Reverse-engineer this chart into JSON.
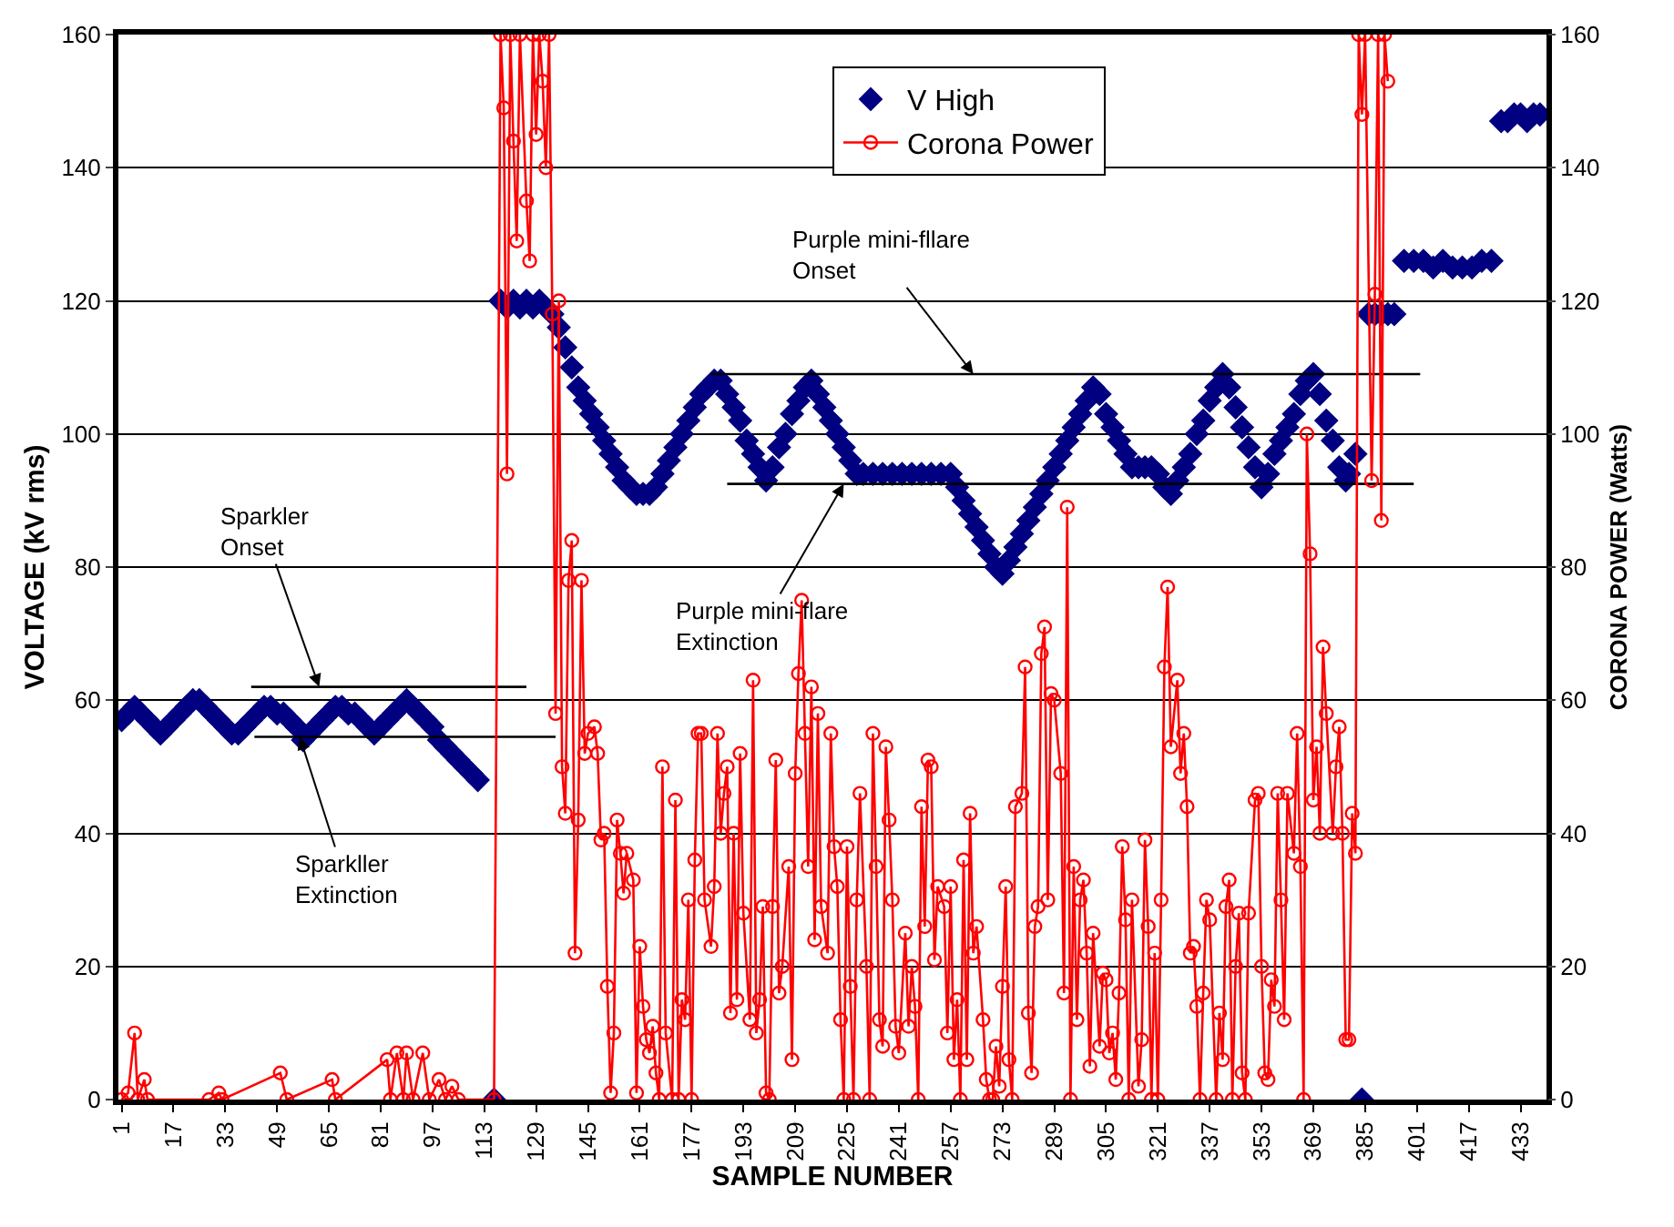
{
  "chart_data": {
    "type": "scatter",
    "xlabel": "SAMPLE NUMBER",
    "ylabel": "VOLTAGE (kV rms)",
    "y2label": "CORONA POWER (Watts)",
    "xlim": [
      0,
      441
    ],
    "xticks": [
      1,
      17,
      33,
      49,
      65,
      81,
      97,
      113,
      129,
      145,
      161,
      177,
      193,
      209,
      225,
      241,
      257,
      273,
      289,
      305,
      321,
      337,
      353,
      369,
      385,
      401,
      417,
      433
    ],
    "ylim": [
      0,
      160
    ],
    "yticks": [
      0,
      20,
      40,
      60,
      80,
      100,
      120,
      140,
      160
    ],
    "y2lim": [
      0,
      160
    ],
    "y2ticks": [
      0,
      20,
      40,
      60,
      80,
      100,
      120,
      140,
      160
    ],
    "grid": "y",
    "legend": "top",
    "series": [
      {
        "name": "V High",
        "marker": "diamond",
        "color": "#000080",
        "x": [
          1,
          3,
          5,
          7,
          9,
          11,
          13,
          15,
          17,
          19,
          21,
          23,
          25,
          27,
          29,
          31,
          33,
          35,
          37,
          39,
          41,
          43,
          45,
          47,
          49,
          51,
          53,
          55,
          57,
          59,
          61,
          63,
          65,
          67,
          69,
          71,
          73,
          75,
          77,
          79,
          81,
          83,
          85,
          87,
          89,
          91,
          93,
          95,
          97,
          99,
          101,
          103,
          105,
          107,
          109,
          111,
          116,
          118,
          120,
          122,
          124,
          126,
          128,
          130,
          132,
          134,
          136,
          138,
          140,
          142,
          144,
          146,
          148,
          150,
          152,
          154,
          156,
          158,
          160,
          162,
          164,
          166,
          168,
          170,
          172,
          174,
          176,
          178,
          180,
          182,
          184,
          186,
          188,
          190,
          192,
          194,
          196,
          198,
          200,
          202,
          204,
          206,
          208,
          210,
          212,
          214,
          216,
          218,
          220,
          222,
          224,
          226,
          228,
          230,
          233,
          236,
          239,
          242,
          245,
          248,
          251,
          254,
          257,
          259,
          261,
          263,
          265,
          267,
          269,
          271,
          273,
          275,
          277,
          279,
          281,
          283,
          285,
          287,
          289,
          291,
          293,
          295,
          297,
          299,
          301,
          303,
          305,
          307,
          309,
          311,
          313,
          315,
          317,
          319,
          321,
          323,
          325,
          327,
          329,
          331,
          333,
          335,
          337,
          339,
          341,
          343,
          345,
          347,
          349,
          351,
          353,
          355,
          357,
          359,
          361,
          363,
          365,
          367,
          369,
          371,
          373,
          375,
          377,
          379,
          380,
          382,
          384,
          386,
          388,
          390,
          392,
          394,
          397,
          400,
          403,
          406,
          409,
          412,
          415,
          418,
          421,
          424,
          427,
          429,
          431,
          433,
          435,
          437,
          439
        ],
        "values": [
          57,
          58,
          59,
          58,
          57,
          56,
          55,
          56,
          57,
          58,
          59,
          60,
          60,
          59,
          58,
          57,
          56,
          55,
          55,
          56,
          57,
          58,
          59,
          59,
          58,
          58,
          57,
          56,
          54,
          55,
          56,
          57,
          58,
          59,
          59,
          58,
          58,
          57,
          56,
          55,
          56,
          57,
          58,
          59,
          60,
          59,
          58,
          57,
          56,
          54,
          53,
          52,
          51,
          50,
          49,
          48,
          0,
          120,
          119,
          120,
          119,
          120,
          119,
          120,
          119,
          118,
          116,
          113,
          110,
          107,
          105,
          103,
          101,
          99,
          97,
          95,
          93,
          92,
          91,
          91,
          91,
          92,
          94,
          96,
          98,
          100,
          102,
          104,
          106,
          107,
          108,
          108,
          106,
          104,
          102,
          99,
          97,
          95,
          93,
          95,
          98,
          100,
          103,
          105,
          107,
          108,
          106,
          104,
          102,
          100,
          98,
          96,
          94,
          94,
          94,
          94,
          94,
          94,
          94,
          94,
          94,
          94,
          94,
          92,
          90,
          88,
          86,
          84,
          82,
          80,
          79,
          81,
          83,
          85,
          87,
          89,
          91,
          93,
          95,
          97,
          99,
          101,
          103,
          105,
          107,
          106,
          103,
          101,
          99,
          97,
          95,
          95,
          95,
          95,
          94,
          92,
          91,
          93,
          95,
          97,
          100,
          102,
          105,
          107,
          109,
          107,
          104,
          101,
          98,
          95,
          92,
          94,
          97,
          99,
          101,
          103,
          106,
          108,
          109,
          106,
          102,
          99,
          95,
          93,
          94,
          97,
          0,
          118,
          118,
          118,
          118,
          118,
          126,
          126,
          126,
          125,
          126,
          125,
          125,
          125,
          126,
          126,
          147,
          147,
          148,
          148,
          147,
          148,
          148
        ]
      },
      {
        "name": "Corona Power",
        "type": "line",
        "axis": "y2",
        "marker": "circle",
        "line_style": "solid",
        "color": "#ff0000",
        "x": [
          1,
          3,
          5,
          6,
          8,
          9,
          28,
          31,
          32,
          50,
          52,
          66,
          67,
          83,
          84,
          86,
          88,
          89,
          91,
          94,
          96,
          99,
          101,
          103,
          105,
          116,
          118,
          119,
          120,
          121,
          122,
          123,
          124,
          126,
          127,
          128,
          129,
          130,
          131,
          132,
          133,
          134,
          135,
          136,
          137,
          138,
          139,
          140,
          141,
          142,
          143,
          144,
          145,
          147,
          148,
          149,
          150,
          151,
          152,
          153,
          154,
          155,
          156,
          157,
          159,
          160,
          161,
          162,
          163,
          164,
          165,
          166,
          167,
          168,
          169,
          171,
          172,
          173,
          174,
          175,
          176,
          177,
          178,
          179,
          180,
          181,
          183,
          184,
          185,
          186,
          187,
          188,
          189,
          190,
          191,
          192,
          193,
          195,
          196,
          197,
          198,
          199,
          200,
          201,
          202,
          203,
          204,
          205,
          207,
          208,
          209,
          210,
          211,
          212,
          213,
          214,
          215,
          216,
          217,
          219,
          220,
          221,
          222,
          223,
          224,
          225,
          226,
          227,
          228,
          229,
          231,
          232,
          233,
          234,
          235,
          236,
          237,
          238,
          239,
          240,
          241,
          243,
          244,
          245,
          246,
          247,
          248,
          249,
          250,
          251,
          252,
          253,
          255,
          256,
          257,
          258,
          259,
          260,
          261,
          262,
          263,
          264,
          265,
          267,
          268,
          269,
          270,
          271,
          272,
          273,
          274,
          275,
          276,
          277,
          279,
          280,
          281,
          282,
          283,
          284,
          285,
          286,
          287,
          288,
          289,
          291,
          292,
          293,
          294,
          295,
          296,
          297,
          298,
          299,
          300,
          301,
          303,
          304,
          305,
          306,
          307,
          308,
          309,
          310,
          311,
          312,
          313,
          315,
          316,
          317,
          318,
          319,
          320,
          321,
          322,
          323,
          324,
          325,
          327,
          328,
          329,
          330,
          331,
          332,
          333,
          334,
          335,
          336,
          337,
          339,
          340,
          341,
          342,
          343,
          344,
          345,
          346,
          347,
          348,
          349,
          351,
          352,
          353,
          354,
          355,
          356,
          357,
          358,
          359,
          360,
          361,
          363,
          364,
          365,
          366,
          367,
          368,
          369,
          370,
          371,
          372,
          373,
          375,
          376,
          377,
          378,
          379,
          380,
          381,
          382,
          383,
          384,
          385,
          387,
          388,
          389,
          390,
          391,
          392
        ],
        "values": [
          0,
          1,
          10,
          0,
          3,
          0,
          0,
          1,
          0,
          4,
          0,
          3,
          0,
          6,
          0,
          7,
          0,
          7,
          0,
          7,
          0,
          3,
          0,
          2,
          0,
          0,
          160,
          149,
          94,
          160,
          144,
          129,
          160,
          135,
          126,
          160,
          145,
          160,
          153,
          140,
          160,
          118,
          58,
          120,
          50,
          43,
          78,
          84,
          22,
          42,
          78,
          52,
          55,
          56,
          52,
          39,
          40,
          17,
          1,
          10,
          42,
          37,
          31,
          37,
          33,
          1,
          23,
          14,
          9,
          7,
          11,
          4,
          0,
          50,
          10,
          0,
          45,
          0,
          15,
          12,
          30,
          0,
          36,
          55,
          55,
          30,
          23,
          32,
          55,
          40,
          46,
          50,
          13,
          40,
          15,
          52,
          28,
          12,
          63,
          10,
          15,
          29,
          1,
          0,
          29,
          51,
          16,
          20,
          35,
          6,
          49,
          64,
          75,
          55,
          35,
          62,
          24,
          58,
          29,
          22,
          55,
          38,
          32,
          12,
          0,
          38,
          17,
          0,
          30,
          46,
          20,
          0,
          55,
          35,
          12,
          8,
          53,
          42,
          30,
          11,
          7,
          25,
          11,
          20,
          14,
          0,
          44,
          26,
          51,
          50,
          21,
          32,
          29,
          10,
          32,
          6,
          15,
          0,
          36,
          6,
          43,
          22,
          26,
          12,
          3,
          0,
          0,
          8,
          2,
          17,
          32,
          6,
          0,
          44,
          46,
          65,
          13,
          4,
          26,
          29,
          67,
          71,
          30,
          61,
          60,
          49,
          16,
          89,
          0,
          35,
          12,
          30,
          33,
          22,
          5,
          25,
          8,
          19,
          18,
          7,
          10,
          3,
          16,
          38,
          27,
          0,
          30,
          2,
          9,
          39,
          26,
          0,
          22,
          0,
          30,
          65,
          77,
          53,
          63,
          49,
          55,
          44,
          22,
          23,
          14,
          0,
          16,
          30,
          27,
          0,
          13,
          6,
          29,
          33,
          0,
          20,
          28,
          4,
          0,
          28,
          45,
          46,
          20,
          4,
          3,
          18,
          14,
          46,
          30,
          12,
          46,
          37,
          55,
          35,
          0,
          100,
          82,
          45,
          53,
          40,
          68,
          58,
          40,
          50,
          56,
          40,
          9,
          9,
          43,
          37,
          160,
          148,
          160,
          93,
          121,
          160,
          87,
          160,
          153
        ]
      },
      {
        "type": "line",
        "marker": "none",
        "line_style": "solid",
        "color": "#000000",
        "x": [
          41,
          126
        ],
        "values": [
          62,
          62
        ]
      },
      {
        "type": "line",
        "marker": "none",
        "line_style": "solid",
        "color": "#000000",
        "x": [
          42,
          135
        ],
        "values": [
          54.5,
          54.5
        ]
      },
      {
        "type": "line",
        "marker": "none",
        "line_style": "solid",
        "color": "#000000",
        "x": [
          183,
          402
        ],
        "values": [
          109,
          109
        ]
      },
      {
        "type": "line",
        "marker": "none",
        "line_style": "solid",
        "color": "#000000",
        "x": [
          188,
          400
        ],
        "values": [
          92.5,
          92.5
        ]
      }
    ],
    "annotations": [
      {
        "text": "Sparkler\nOnset",
        "x": 62,
        "y": 62
      },
      {
        "text": "Sparkller\nExtinction",
        "x": 56,
        "y": 54.5
      },
      {
        "text": "Purple mini-fllare\nOnset",
        "x": 264,
        "y": 109
      },
      {
        "text": "Purple mini-flare\nExtinction",
        "x": 224,
        "y": 92.5
      }
    ]
  }
}
